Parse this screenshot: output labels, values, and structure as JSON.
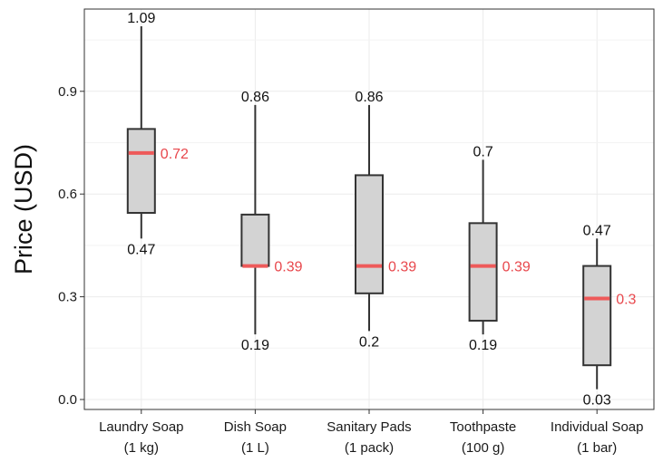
{
  "chart_data": {
    "type": "boxplot",
    "ylabel": "Price (USD)",
    "xlabel": "",
    "ylim": [
      -0.01,
      1.13
    ],
    "yticks": [
      "0.0",
      "0.3",
      "0.6",
      "0.9"
    ],
    "yticks_values": [
      0.0,
      0.3,
      0.6,
      0.9
    ],
    "grid": true,
    "colors": {
      "box_fill": "#d3d3d3",
      "box_stroke": "#333333",
      "median": "#ee5a5a",
      "median_label": "#e8474c",
      "grid": "#ebebeb",
      "panel_border": "#333333"
    },
    "categories": [
      {
        "line1": "Laundry Soap",
        "line2": "(1 kg)",
        "min": 0.47,
        "q1": 0.545,
        "median": 0.72,
        "q3": 0.79,
        "max": 1.09,
        "label_max": "1.09",
        "label_min": "0.47",
        "label_median": "0.72"
      },
      {
        "line1": "Dish Soap",
        "line2": "(1 L)",
        "min": 0.19,
        "q1": 0.39,
        "median": 0.39,
        "q3": 0.54,
        "max": 0.86,
        "label_max": "0.86",
        "label_min": "0.19",
        "label_median": "0.39"
      },
      {
        "line1": "Sanitary Pads",
        "line2": "(1 pack)",
        "min": 0.2,
        "q1": 0.31,
        "median": 0.39,
        "q3": 0.655,
        "max": 0.86,
        "label_max": "0.86",
        "label_min": "0.2",
        "label_median": "0.39"
      },
      {
        "line1": "Toothpaste",
        "line2": "(100 g)",
        "min": 0.19,
        "q1": 0.23,
        "median": 0.39,
        "q3": 0.515,
        "max": 0.7,
        "label_max": "0.7",
        "label_min": "0.19",
        "label_median": "0.39"
      },
      {
        "line1": "Individual Soap",
        "line2": "(1 bar)",
        "min": 0.03,
        "q1": 0.1,
        "median": 0.295,
        "q3": 0.39,
        "max": 0.47,
        "label_max": "0.47",
        "label_min": "0.03",
        "label_median": "0.3"
      }
    ]
  }
}
